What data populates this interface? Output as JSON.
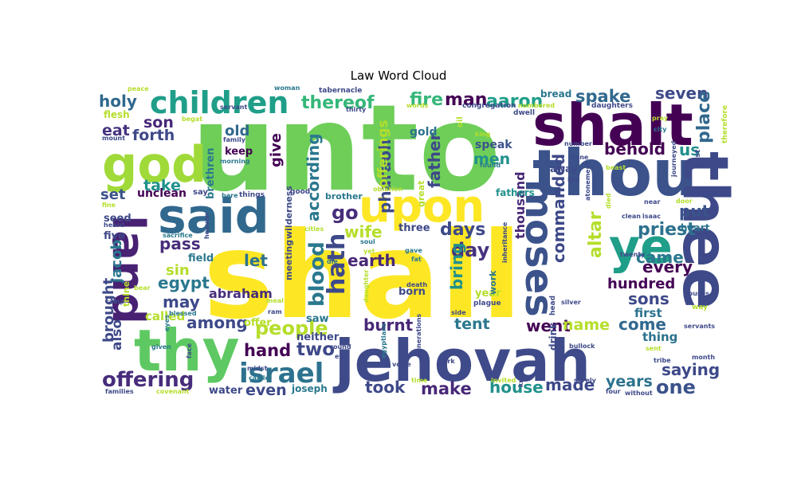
{
  "chart_data": {
    "type": "wordcloud",
    "title": "Law Word Cloud",
    "palette": "viridis",
    "words": [
      {
        "text": "unto",
        "weight": 100,
        "color": "#6ece58"
      },
      {
        "text": "shall",
        "weight": 96,
        "color": "#fde725"
      },
      {
        "text": "jehovah",
        "weight": 62,
        "color": "#3e4a89"
      },
      {
        "text": "thou",
        "weight": 50,
        "color": "#3b528b"
      },
      {
        "text": "thee",
        "weight": 49,
        "color": "#3e4989"
      },
      {
        "text": "shalt",
        "weight": 47,
        "color": "#440154"
      },
      {
        "text": "thy",
        "weight": 44,
        "color": "#5ec962"
      },
      {
        "text": "said",
        "weight": 40,
        "color": "#31688e"
      },
      {
        "text": "upon",
        "weight": 38,
        "color": "#fde725"
      },
      {
        "text": "god",
        "weight": 38,
        "color": "#a0da39"
      },
      {
        "text": "land",
        "weight": 36,
        "color": "#482173"
      },
      {
        "text": "ye",
        "weight": 37,
        "color": "#1f9e89"
      },
      {
        "text": "moses",
        "weight": 30,
        "color": "#3b528b"
      },
      {
        "text": "children",
        "weight": 28,
        "color": "#1f9e89"
      },
      {
        "text": "israel",
        "weight": 24,
        "color": "#2c728e"
      },
      {
        "text": "offering",
        "weight": 19,
        "color": "#472d7b"
      },
      {
        "text": "thereof",
        "weight": 18,
        "color": "#35b779"
      },
      {
        "text": "aaron",
        "weight": 17,
        "color": "#1f9e89"
      },
      {
        "text": "man",
        "weight": 17,
        "color": "#440154"
      },
      {
        "text": "fire",
        "weight": 17,
        "color": "#35b779"
      },
      {
        "text": "spake",
        "weight": 16,
        "color": "#31688e"
      },
      {
        "text": "seven",
        "weight": 15,
        "color": "#3e4989"
      },
      {
        "text": "holy",
        "weight": 15,
        "color": "#31688e"
      },
      {
        "text": "son",
        "weight": 15,
        "color": "#482878"
      },
      {
        "text": "eat",
        "weight": 15,
        "color": "#46327e"
      },
      {
        "text": "forth",
        "weight": 15,
        "color": "#3e4989"
      },
      {
        "text": "take",
        "weight": 15,
        "color": "#21918c"
      },
      {
        "text": "set",
        "weight": 14,
        "color": "#3b528b"
      },
      {
        "text": "old",
        "weight": 14,
        "color": "#31688e"
      },
      {
        "text": "keep",
        "weight": 11,
        "color": "#440154"
      },
      {
        "text": "give",
        "weight": 14,
        "color": "#440154"
      },
      {
        "text": "according",
        "weight": 15,
        "color": "#2a788e"
      },
      {
        "text": "pharaoh",
        "weight": 15,
        "color": "#3e4a89"
      },
      {
        "text": "offerings",
        "weight": 13,
        "color": "#b5de2b"
      },
      {
        "text": "father",
        "weight": 15,
        "color": "#3e4989"
      },
      {
        "text": "gold",
        "weight": 12,
        "color": "#2c728e"
      },
      {
        "text": "speak",
        "weight": 12,
        "color": "#3b528b"
      },
      {
        "text": "men",
        "weight": 15,
        "color": "#21918c"
      },
      {
        "text": "behold",
        "weight": 16,
        "color": "#440154"
      },
      {
        "text": "us",
        "weight": 16,
        "color": "#21918c"
      },
      {
        "text": "place",
        "weight": 16,
        "color": "#31688e"
      },
      {
        "text": "go",
        "weight": 19,
        "color": "#472d7b"
      },
      {
        "text": "wife",
        "weight": 16,
        "color": "#b5de2b"
      },
      {
        "text": "days",
        "weight": 18,
        "color": "#3e4989"
      },
      {
        "text": "day",
        "weight": 19,
        "color": "#46327e"
      },
      {
        "text": "earth",
        "weight": 17,
        "color": "#482878"
      },
      {
        "text": "let",
        "weight": 16,
        "color": "#2c728e"
      },
      {
        "text": "pass",
        "weight": 15,
        "color": "#472d7b"
      },
      {
        "text": "sin",
        "weight": 14,
        "color": "#b5de2b"
      },
      {
        "text": "egypt",
        "weight": 15,
        "color": "#2a788e"
      },
      {
        "text": "may",
        "weight": 15,
        "color": "#3e4989"
      },
      {
        "text": "abraham",
        "weight": 13,
        "color": "#472d7b"
      },
      {
        "text": "among",
        "weight": 15,
        "color": "#3e4989"
      },
      {
        "text": "people",
        "weight": 18,
        "color": "#b5de2b"
      },
      {
        "text": "hand",
        "weight": 16,
        "color": "#440154"
      },
      {
        "text": "two",
        "weight": 17,
        "color": "#3e4989"
      },
      {
        "text": "even",
        "weight": 15,
        "color": "#3e4989"
      },
      {
        "text": "burnt",
        "weight": 16,
        "color": "#482878"
      },
      {
        "text": "went",
        "weight": 16,
        "color": "#440154"
      },
      {
        "text": "tent",
        "weight": 15,
        "color": "#2a788e"
      },
      {
        "text": "name",
        "weight": 15,
        "color": "#b5de2b"
      },
      {
        "text": "come",
        "weight": 16,
        "color": "#31688e"
      },
      {
        "text": "thing",
        "weight": 13,
        "color": "#2c728e"
      },
      {
        "text": "saying",
        "weight": 16,
        "color": "#3e4989"
      },
      {
        "text": "one",
        "weight": 16,
        "color": "#3b528b"
      },
      {
        "text": "years",
        "weight": 15,
        "color": "#2c728e"
      },
      {
        "text": "made",
        "weight": 16,
        "color": "#3e4989"
      },
      {
        "text": "house",
        "weight": 16,
        "color": "#21918c"
      },
      {
        "text": "make",
        "weight": 16,
        "color": "#482878"
      },
      {
        "text": "took",
        "weight": 16,
        "color": "#3e4989"
      },
      {
        "text": "hath",
        "weight": 19,
        "color": "#3e4989"
      },
      {
        "text": "blood",
        "weight": 19,
        "color": "#2a788e"
      },
      {
        "text": "bring",
        "weight": 15,
        "color": "#21918c"
      },
      {
        "text": "commanded",
        "weight": 15,
        "color": "#3e4989"
      },
      {
        "text": "altar",
        "weight": 16,
        "color": "#b5de2b"
      },
      {
        "text": "thousand",
        "weight": 13,
        "color": "#482878"
      },
      {
        "text": "priest",
        "weight": 16,
        "color": "#2c728e"
      },
      {
        "text": "put",
        "weight": 16,
        "color": "#3b528b"
      },
      {
        "text": "came",
        "weight": 15,
        "color": "#2a788e"
      },
      {
        "text": "every",
        "weight": 16,
        "color": "#440154"
      },
      {
        "text": "hundred",
        "weight": 14,
        "color": "#440154"
      },
      {
        "text": "sons",
        "weight": 15,
        "color": "#3e4989"
      },
      {
        "text": "first",
        "weight": 12,
        "color": "#2c728e"
      },
      {
        "text": "brought",
        "weight": 13,
        "color": "#3e4989"
      },
      {
        "text": "jacob",
        "weight": 14,
        "color": "#2a788e"
      },
      {
        "text": "also",
        "weight": 13,
        "color": "#3e4989"
      },
      {
        "text": "called",
        "weight": 12,
        "color": "#b5de2b"
      },
      {
        "text": "unclean",
        "weight": 12,
        "color": "#440154"
      },
      {
        "text": "seed",
        "weight": 11,
        "color": "#3e4989"
      },
      {
        "text": "five",
        "weight": 11,
        "color": "#3e4989"
      },
      {
        "text": "field",
        "weight": 11,
        "color": "#2a788e"
      },
      {
        "text": "brethren",
        "weight": 10,
        "color": "#2a788e"
      },
      {
        "text": "water",
        "weight": 11,
        "color": "#3e4989"
      },
      {
        "text": "joseph",
        "weight": 10,
        "color": "#2a788e"
      },
      {
        "text": "neither",
        "weight": 11,
        "color": "#3e4989"
      },
      {
        "text": "offer",
        "weight": 11,
        "color": "#b5de2b"
      },
      {
        "text": "saw",
        "weight": 11,
        "color": "#2a788e"
      },
      {
        "text": "born",
        "weight": 11,
        "color": "#3e4989"
      },
      {
        "text": "year",
        "weight": 10,
        "color": "#b5de2b"
      },
      {
        "text": "three",
        "weight": 11,
        "color": "#3e4989"
      },
      {
        "text": "wilderness",
        "weight": 10,
        "color": "#3e4989"
      },
      {
        "text": "brother",
        "weight": 10,
        "color": "#2a788e"
      },
      {
        "text": "fathers",
        "weight": 11,
        "color": "#21918c"
      },
      {
        "text": "away",
        "weight": 11,
        "color": "#3e4989"
      },
      {
        "text": "great",
        "weight": 10,
        "color": "#b5de2b"
      },
      {
        "text": "meeting",
        "weight": 10,
        "color": "#3e4989"
      },
      {
        "text": "drink",
        "weight": 10,
        "color": "#3e4989"
      },
      {
        "text": "heart",
        "weight": 10,
        "color": "#2c728e"
      },
      {
        "text": "work",
        "weight": 9,
        "color": "#2a788e"
      },
      {
        "text": "bread",
        "weight": 9,
        "color": "#2a788e"
      },
      {
        "text": "tabernacle",
        "weight": 8,
        "color": "#3e4989"
      },
      {
        "text": "congregation",
        "weight": 8,
        "color": "#3e4989"
      },
      {
        "text": "numbered",
        "weight": 7,
        "color": "#b5de2b"
      },
      {
        "text": "daughters",
        "weight": 7,
        "color": "#3e4989"
      },
      {
        "text": "therefore",
        "weight": 7,
        "color": "#b5de2b"
      },
      {
        "text": "pray",
        "weight": 7,
        "color": "#b5de2b"
      },
      {
        "text": "city",
        "weight": 7,
        "color": "#2a788e"
      },
      {
        "text": "hast",
        "weight": 7,
        "color": "#3e4989"
      },
      {
        "text": "journeyed",
        "weight": 7,
        "color": "#3e4989"
      },
      {
        "text": "flesh",
        "weight": 9,
        "color": "#b5de2b"
      },
      {
        "text": "mount",
        "weight": 7,
        "color": "#3e4989"
      },
      {
        "text": "begat",
        "weight": 7,
        "color": "#b5de2b"
      },
      {
        "text": "family",
        "weight": 6,
        "color": "#3e4989"
      },
      {
        "text": "morning",
        "weight": 7,
        "color": "#2a788e"
      },
      {
        "text": "servant",
        "weight": 6,
        "color": "#3e4989"
      },
      {
        "text": "peace",
        "weight": 6,
        "color": "#b5de2b"
      },
      {
        "text": "woman",
        "weight": 6,
        "color": "#2a788e"
      },
      {
        "text": "words",
        "weight": 6,
        "color": "#b5de2b"
      },
      {
        "text": "thirty",
        "weight": 6,
        "color": "#3e4989"
      },
      {
        "text": "dwell",
        "weight": 7,
        "color": "#3e4989"
      },
      {
        "text": "oil",
        "weight": 7,
        "color": "#b5de2b"
      },
      {
        "text": "king",
        "weight": 6,
        "color": "#b5de2b"
      },
      {
        "text": "found",
        "weight": 6,
        "color": "#2a788e"
      },
      {
        "text": "number",
        "weight": 6,
        "color": "#3e4989"
      },
      {
        "text": "done",
        "weight": 6,
        "color": "#3e4989"
      },
      {
        "text": "beast",
        "weight": 6,
        "color": "#b5de2b"
      },
      {
        "text": "law",
        "weight": 6,
        "color": "#3e4989"
      },
      {
        "text": "atonement",
        "weight": 6,
        "color": "#3e4989"
      },
      {
        "text": "died",
        "weight": 6,
        "color": "#b5de2b"
      },
      {
        "text": "near",
        "weight": 6,
        "color": "#3e4989"
      },
      {
        "text": "clean",
        "weight": 6,
        "color": "#3e4989"
      },
      {
        "text": "isaac",
        "weight": 6,
        "color": "#3e4989"
      },
      {
        "text": "twenty",
        "weight": 6,
        "color": "#3e4989"
      },
      {
        "text": "door",
        "weight": 6,
        "color": "#b5de2b"
      },
      {
        "text": "thine",
        "weight": 8,
        "color": "#b5de2b"
      },
      {
        "text": "fine",
        "weight": 6,
        "color": "#b5de2b"
      },
      {
        "text": "heard",
        "weight": 6,
        "color": "#3e4989"
      },
      {
        "text": "heaven",
        "weight": 6,
        "color": "#3e4989"
      },
      {
        "text": "sacrifice",
        "weight": 6,
        "color": "#2a788e"
      },
      {
        "text": "cities",
        "weight": 6,
        "color": "#b5de2b"
      },
      {
        "text": "things",
        "weight": 7,
        "color": "#3e4989"
      },
      {
        "text": "bare",
        "weight": 6,
        "color": "#2a788e"
      },
      {
        "text": "good",
        "weight": 7,
        "color": "#3e4989"
      },
      {
        "text": "oblation",
        "weight": 6,
        "color": "#b5de2b"
      },
      {
        "text": "soul",
        "weight": 6,
        "color": "#2a788e"
      },
      {
        "text": "yet",
        "weight": 6,
        "color": "#b5de2b"
      },
      {
        "text": "die",
        "weight": 6,
        "color": "#2a788e"
      },
      {
        "text": "gave",
        "weight": 6,
        "color": "#2a788e"
      },
      {
        "text": "fat",
        "weight": 6,
        "color": "#2a788e"
      },
      {
        "text": "inheritance",
        "weight": 6,
        "color": "#3e4989"
      },
      {
        "text": "plague",
        "weight": 7,
        "color": "#3e4989"
      },
      {
        "text": "silver",
        "weight": 6,
        "color": "#3e4989"
      },
      {
        "text": "side",
        "weight": 6,
        "color": "#3e4989"
      },
      {
        "text": "death",
        "weight": 6,
        "color": "#3e4989"
      },
      {
        "text": "daughter",
        "weight": 6,
        "color": "#b5de2b"
      },
      {
        "text": "bear",
        "weight": 6,
        "color": "#b5de2b"
      },
      {
        "text": "camp",
        "weight": 6,
        "color": "#3e4989"
      },
      {
        "text": "blessed",
        "weight": 6,
        "color": "#2a788e"
      },
      {
        "text": "ram",
        "weight": 6,
        "color": "#3e4989"
      },
      {
        "text": "meal",
        "weight": 6,
        "color": "#b5de2b"
      },
      {
        "text": "eyes",
        "weight": 6,
        "color": "#2a788e"
      },
      {
        "text": "given",
        "weight": 6,
        "color": "#2a788e"
      },
      {
        "text": "face",
        "weight": 6,
        "color": "#3e4989"
      },
      {
        "text": "midst",
        "weight": 6,
        "color": "#3e4989"
      },
      {
        "text": "cattle",
        "weight": 6,
        "color": "#2a788e"
      },
      {
        "text": "evil",
        "weight": 6,
        "color": "#3e4989"
      },
      {
        "text": "round",
        "weight": 6,
        "color": "#3e4989"
      },
      {
        "text": "egyptians",
        "weight": 6,
        "color": "#2a788e"
      },
      {
        "text": "generations",
        "weight": 6,
        "color": "#3e4989"
      },
      {
        "text": "voice",
        "weight": 6,
        "color": "#3e4989"
      },
      {
        "text": "time",
        "weight": 6,
        "color": "#b5de2b"
      },
      {
        "text": "ark",
        "weight": 6,
        "color": "#3e4989"
      },
      {
        "text": "invited",
        "weight": 6,
        "color": "#b5de2b"
      },
      {
        "text": "know",
        "weight": 6,
        "color": "#3e4989"
      },
      {
        "text": "surely",
        "weight": 6,
        "color": "#3e4989"
      },
      {
        "text": "four",
        "weight": 6,
        "color": "#3e4989"
      },
      {
        "text": "without",
        "weight": 6,
        "color": "#3e4989"
      },
      {
        "text": "bullock",
        "weight": 6,
        "color": "#3e4989"
      },
      {
        "text": "tribe",
        "weight": 6,
        "color": "#3e4989"
      },
      {
        "text": "sent",
        "weight": 6,
        "color": "#b5de2b"
      },
      {
        "text": "month",
        "weight": 6,
        "color": "#3e4989"
      },
      {
        "text": "servants",
        "weight": 6,
        "color": "#3e4989"
      },
      {
        "text": "houses",
        "weight": 6,
        "color": "#3e4989"
      },
      {
        "text": "way",
        "weight": 6,
        "color": "#b5de2b"
      },
      {
        "text": "head",
        "weight": 7,
        "color": "#3e4989"
      },
      {
        "text": "families",
        "weight": 6,
        "color": "#3e4989"
      },
      {
        "text": "covenant",
        "weight": 6,
        "color": "#b5de2b"
      },
      {
        "text": "say",
        "weight": 8,
        "color": "#3e4989"
      }
    ]
  }
}
